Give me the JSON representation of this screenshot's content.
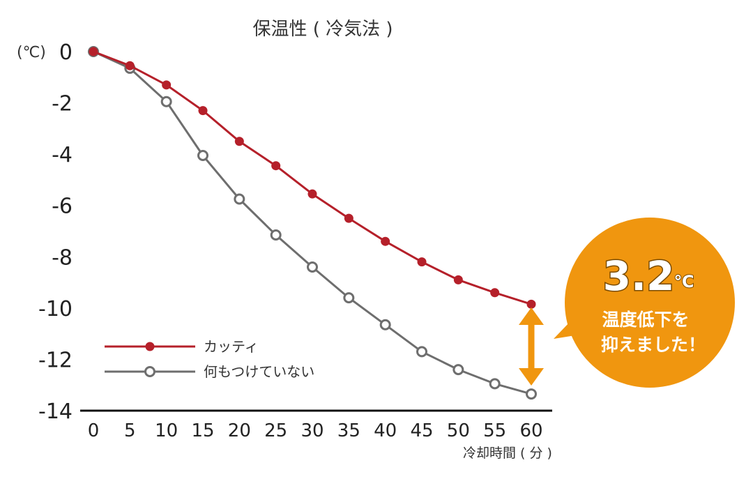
{
  "chart_data": {
    "type": "line",
    "title": "保温性 ( 冷気法 )",
    "ylabel": "(℃)",
    "xlabel": "冷却時間 ( 分 )",
    "x": [
      0,
      5,
      10,
      15,
      20,
      25,
      30,
      35,
      40,
      45,
      50,
      55,
      60
    ],
    "y_ticks": [
      "0",
      "-2",
      "-4",
      "-6",
      "-8",
      "-10",
      "-12",
      "-14"
    ],
    "x_ticks": [
      "0",
      "5",
      "10",
      "15",
      "20",
      "25",
      "30",
      "35",
      "40",
      "45",
      "50",
      "55",
      "60"
    ],
    "ylim": [
      -14,
      0
    ],
    "xlim": [
      0,
      60
    ],
    "grid": false,
    "legend_position": "bottom-left",
    "series": [
      {
        "name": "カッティ",
        "color": "#b5202a",
        "marker": "filled-circle",
        "values": [
          0,
          -0.55,
          -1.3,
          -2.3,
          -3.5,
          -4.45,
          -5.55,
          -6.5,
          -7.4,
          -8.2,
          -8.9,
          -9.4,
          -9.85
        ]
      },
      {
        "name": "何もつけていない",
        "color": "#6e6e6e",
        "marker": "hollow-circle",
        "values": [
          0,
          -0.65,
          -1.95,
          -4.05,
          -5.75,
          -7.15,
          -8.4,
          -9.6,
          -10.65,
          -11.7,
          -12.4,
          -12.95,
          -13.35
        ]
      }
    ],
    "annotation": {
      "value": "3.2",
      "unit": "℃",
      "line1": "温度低下を",
      "line2": "抑えました！",
      "color": "#f0960f"
    }
  }
}
